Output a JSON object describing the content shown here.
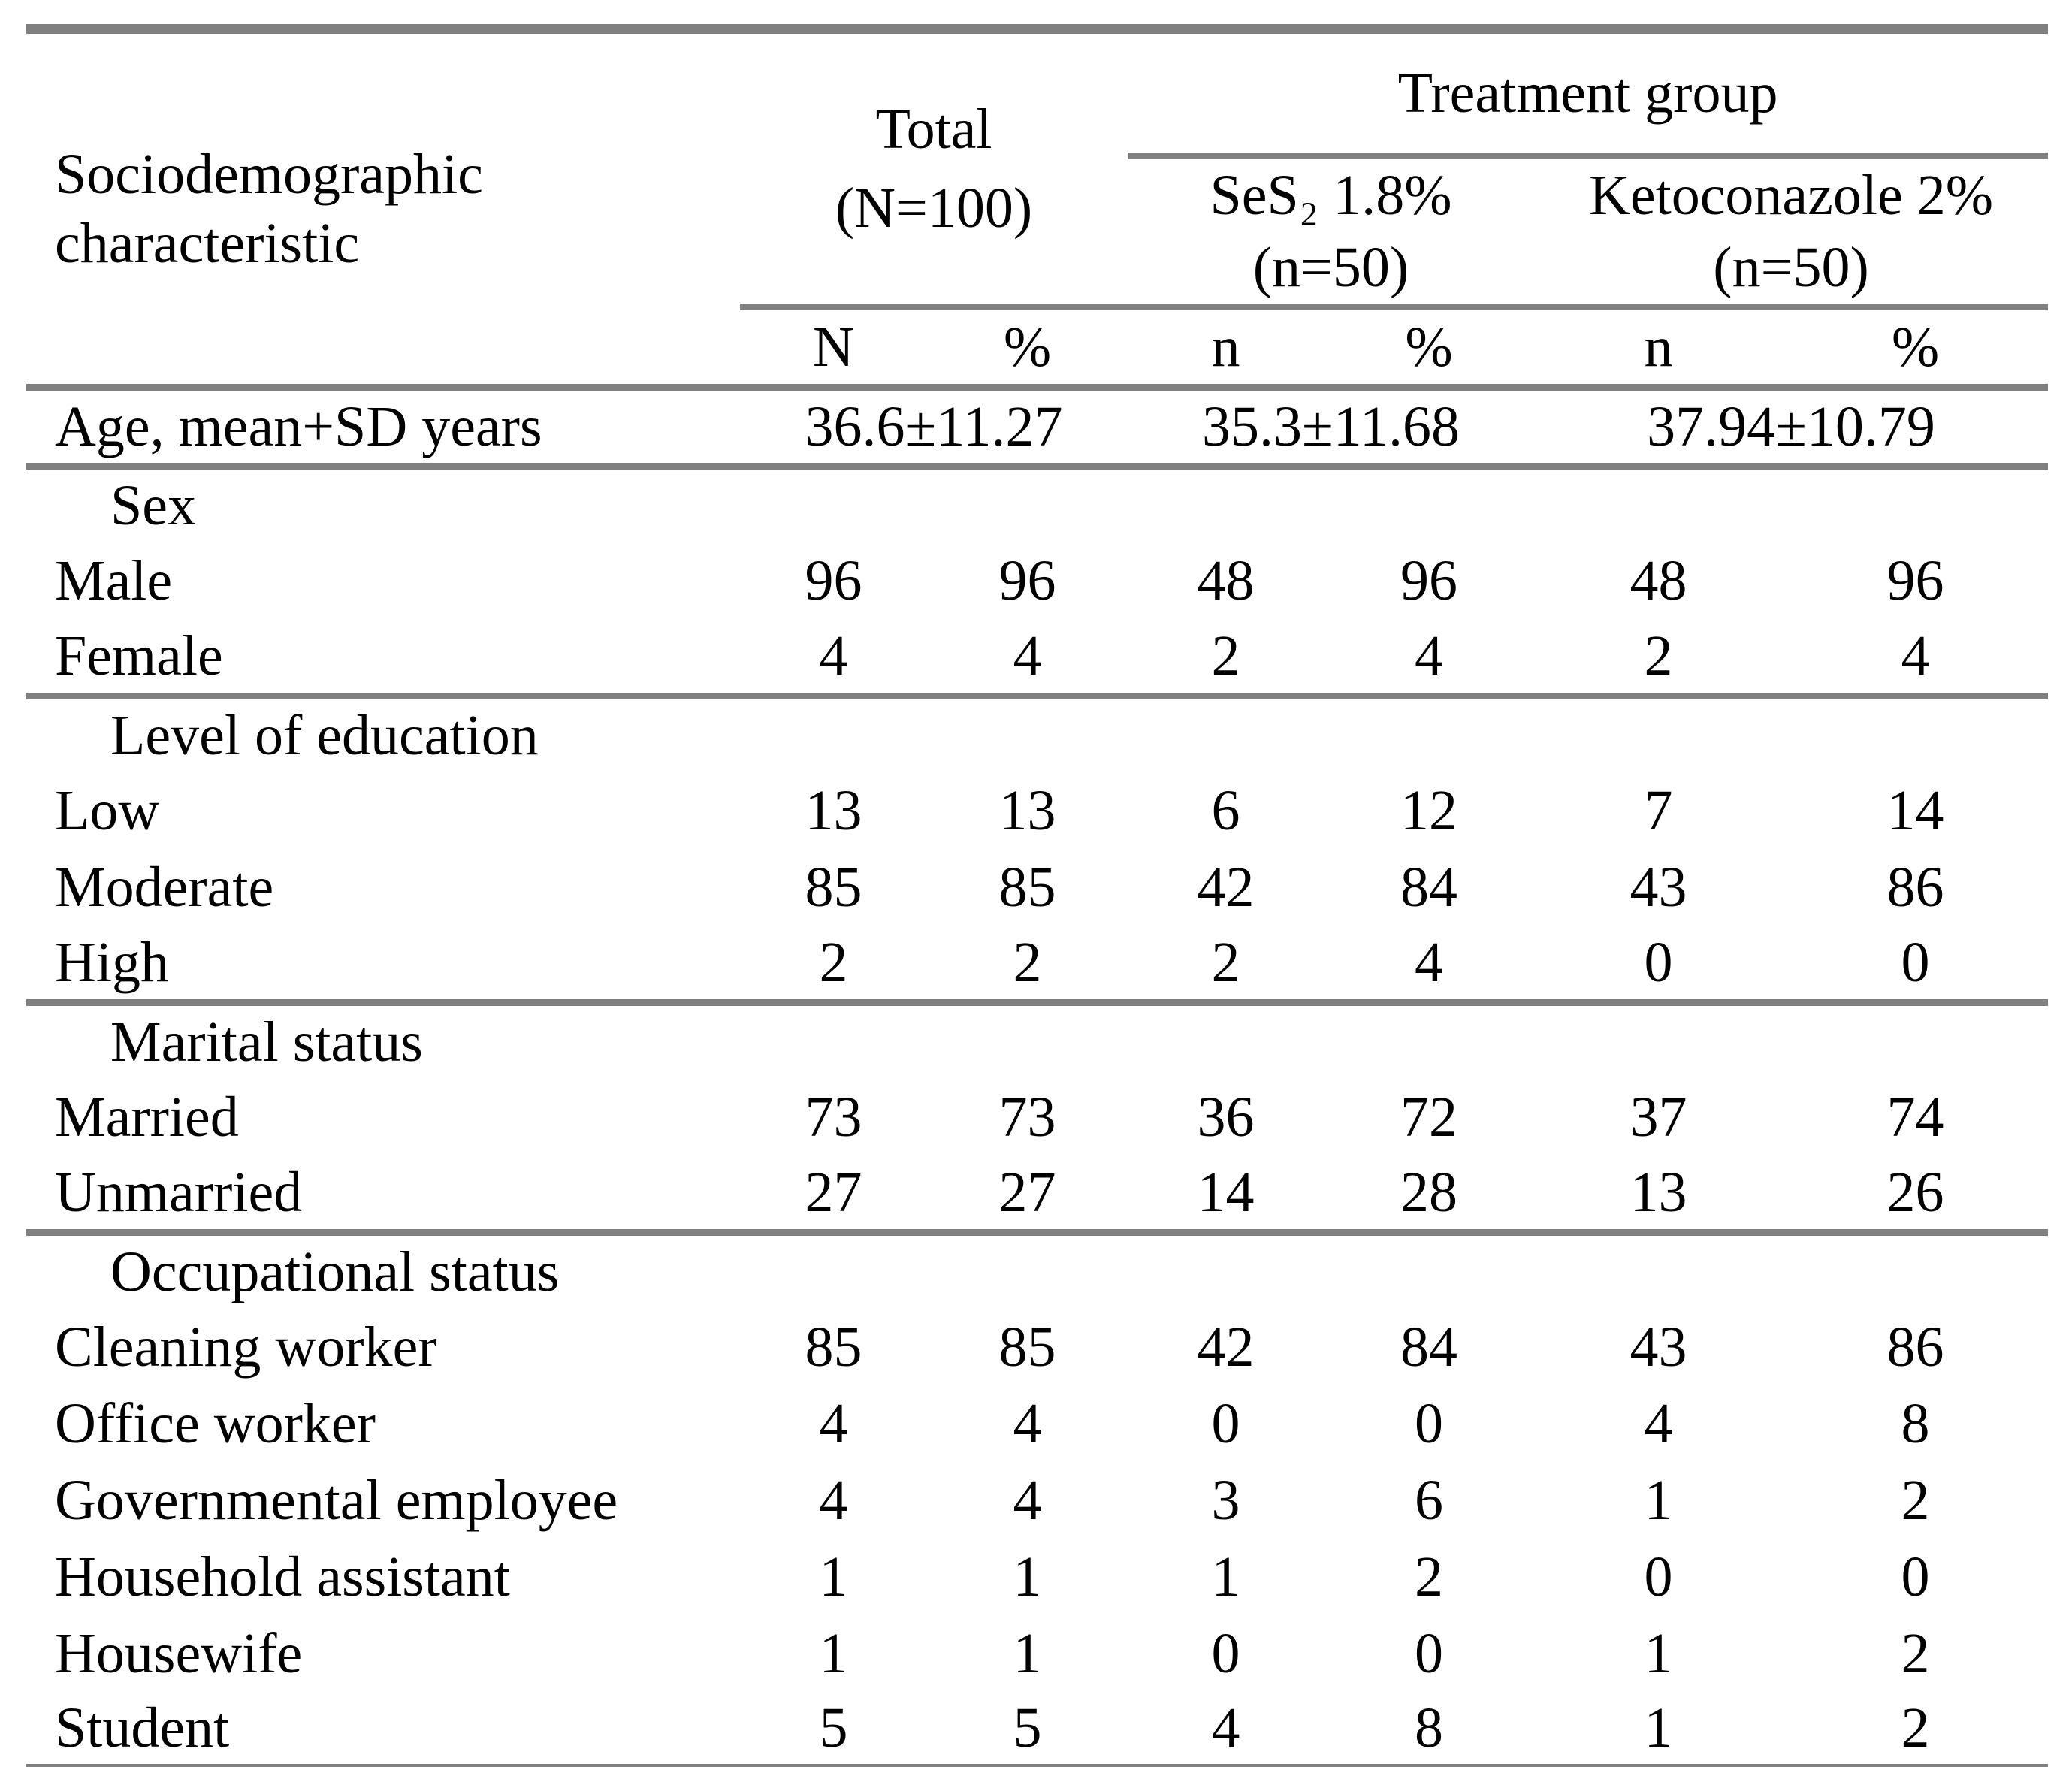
{
  "colors": {
    "rule": "#808080",
    "text": "#000000",
    "background": "#ffffff"
  },
  "table": {
    "stub_header": "Sociodemographic characteristic",
    "total": {
      "title": "Total",
      "n": "(N=100)"
    },
    "treatment": {
      "title": "Treatment group"
    },
    "groups": [
      {
        "name": "SeS₂ 1.8%",
        "n": "(n=50)"
      },
      {
        "name": "Ketoconazole 2%",
        "n": "(n=50)"
      }
    ],
    "subheaders": [
      "N",
      "%",
      "n",
      "%",
      "n",
      "%"
    ],
    "rows": [
      {
        "kind": "age",
        "label": "Age, mean+SD years",
        "values": [
          "36.6±11.27",
          "35.3±11.68",
          "37.94±10.79"
        ],
        "rule_below": true
      },
      {
        "kind": "section",
        "label": "Sex"
      },
      {
        "kind": "data",
        "label": "Male",
        "values": [
          "96",
          "96",
          "48",
          "96",
          "48",
          "96"
        ]
      },
      {
        "kind": "data",
        "label": "Female",
        "values": [
          "4",
          "4",
          "2",
          "4",
          "2",
          "4"
        ],
        "rule_below": true
      },
      {
        "kind": "section",
        "label": "Level of education"
      },
      {
        "kind": "data",
        "label": "Low",
        "values": [
          "13",
          "13",
          "6",
          "12",
          "7",
          "14"
        ]
      },
      {
        "kind": "data",
        "label": "Moderate",
        "values": [
          "85",
          "85",
          "42",
          "84",
          "43",
          "86"
        ]
      },
      {
        "kind": "data",
        "label": "High",
        "values": [
          "2",
          "2",
          "2",
          "4",
          "0",
          "0"
        ],
        "rule_below": true
      },
      {
        "kind": "section",
        "label": "Marital status"
      },
      {
        "kind": "data",
        "label": "Married",
        "values": [
          "73",
          "73",
          "36",
          "72",
          "37",
          "74"
        ]
      },
      {
        "kind": "data",
        "label": "Unmarried",
        "values": [
          "27",
          "27",
          "14",
          "28",
          "13",
          "26"
        ],
        "rule_below": true
      },
      {
        "kind": "section",
        "label": "Occupational status"
      },
      {
        "kind": "data",
        "label": "Cleaning worker",
        "values": [
          "85",
          "85",
          "42",
          "84",
          "43",
          "86"
        ]
      },
      {
        "kind": "data",
        "label": "Office worker",
        "values": [
          "4",
          "4",
          "0",
          "0",
          "4",
          "8"
        ]
      },
      {
        "kind": "data",
        "label": "Governmental employee",
        "values": [
          "4",
          "4",
          "3",
          "6",
          "1",
          "2"
        ]
      },
      {
        "kind": "data",
        "label": "Household assistant",
        "values": [
          "1",
          "1",
          "1",
          "2",
          "0",
          "0"
        ]
      },
      {
        "kind": "data",
        "label": "Housewife",
        "values": [
          "1",
          "1",
          "0",
          "0",
          "1",
          "2"
        ]
      },
      {
        "kind": "data",
        "label": "Student",
        "values": [
          "5",
          "5",
          "4",
          "8",
          "1",
          "2"
        ]
      }
    ]
  }
}
